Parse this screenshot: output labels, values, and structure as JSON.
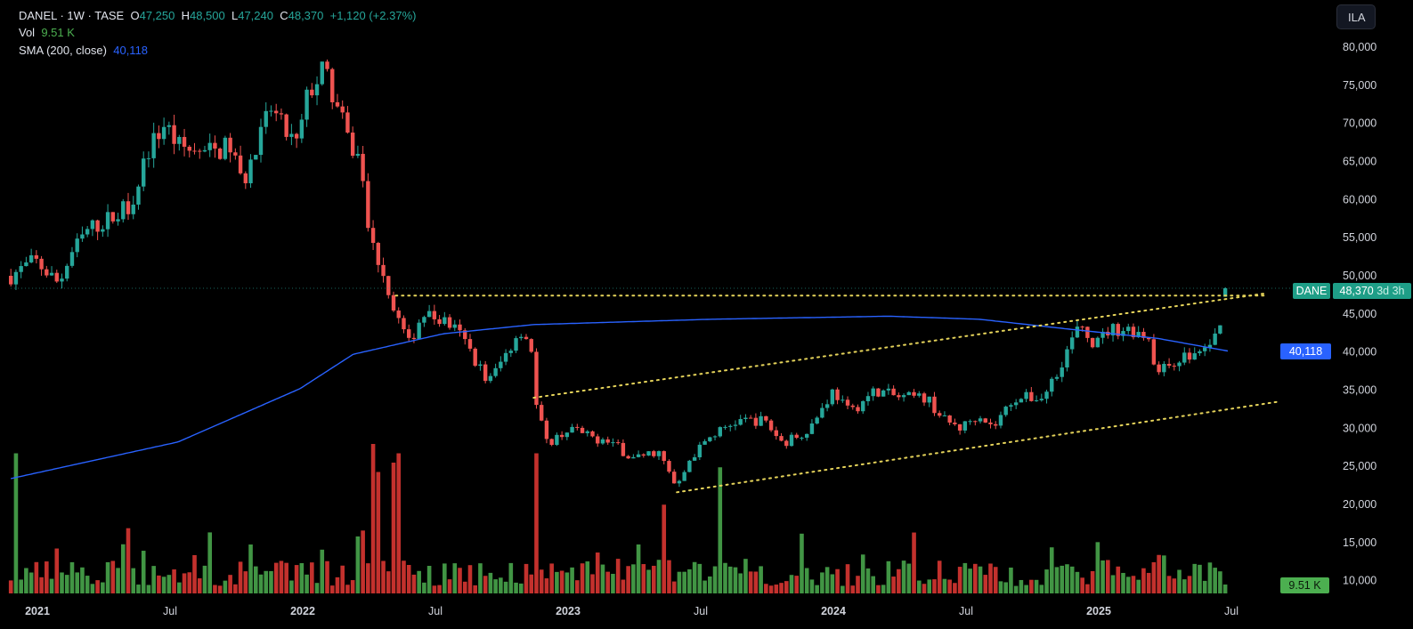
{
  "legend": {
    "symbol_line": "DANEL · 1W · TASE",
    "o_label": "O",
    "o": "47,250",
    "h_label": "H",
    "h": "48,500",
    "l_label": "L",
    "l": "47,240",
    "c_label": "C",
    "c": "48,370",
    "change": "+1,120 (+2.37%)",
    "vol_label": "Vol",
    "vol": "9.51 K",
    "sma_label": "SMA (200, close)",
    "sma": "40,118"
  },
  "currency_button": "ILA",
  "tags": {
    "symbol": "DANE",
    "price": "48,370",
    "countdown": "3d 3h",
    "sma": "40,118",
    "volume": "9.51 K"
  },
  "colors": {
    "up": "#26a69a",
    "down": "#ef5350",
    "vol_up": "#4caf50",
    "vol_down": "#e53935",
    "sma": "#2962ff",
    "trend": "#e5d35a"
  },
  "chart_data": {
    "type": "candlestick",
    "title": "DANEL · 1W · TASE",
    "y_ticks": [
      "80,000",
      "75,000",
      "70,000",
      "65,000",
      "60,000",
      "55,000",
      "50,000",
      "45,000",
      "40,000",
      "35,000",
      "30,000",
      "25,000",
      "20,000",
      "15,000",
      "10,000"
    ],
    "y_tick_values": [
      80000,
      75000,
      70000,
      65000,
      60000,
      55000,
      50000,
      45000,
      40000,
      35000,
      30000,
      25000,
      20000,
      15000,
      10000
    ],
    "x_ticks": [
      "2021",
      "Jul",
      "2022",
      "Jul",
      "2023",
      "Jul",
      "2024",
      "Jul",
      "2025",
      "Jul"
    ],
    "x_tick_values": [
      2021,
      2021.5,
      2022,
      2022.5,
      2023,
      2023.5,
      2024,
      2024.5,
      2025,
      2025.5
    ],
    "close_path": [
      [
        2020.9,
        50000
      ],
      [
        2020.99,
        52000
      ],
      [
        2021.08,
        49000
      ],
      [
        2021.13,
        53000
      ],
      [
        2021.19,
        56000
      ],
      [
        2021.3,
        58000
      ],
      [
        2021.36,
        60000
      ],
      [
        2021.41,
        66000
      ],
      [
        2021.48,
        70000
      ],
      [
        2021.53,
        67000
      ],
      [
        2021.63,
        66000
      ],
      [
        2021.73,
        67000
      ],
      [
        2021.77,
        62000
      ],
      [
        2021.83,
        67000
      ],
      [
        2021.88,
        72000
      ],
      [
        2021.93,
        69000
      ],
      [
        2021.98,
        67000
      ],
      [
        2022.02,
        74000
      ],
      [
        2022.08,
        77000
      ],
      [
        2022.13,
        72000
      ],
      [
        2022.18,
        67000
      ],
      [
        2022.22,
        65000
      ],
      [
        2022.25,
        55000
      ],
      [
        2022.3,
        51000
      ],
      [
        2022.34,
        46000
      ],
      [
        2022.4,
        41000
      ],
      [
        2022.45,
        45000
      ],
      [
        2022.54,
        44000
      ],
      [
        2022.6,
        42000
      ],
      [
        2022.7,
        36000
      ],
      [
        2022.77,
        40000
      ],
      [
        2022.82,
        43000
      ],
      [
        2022.86,
        41000
      ],
      [
        2022.88,
        33000
      ],
      [
        2022.92,
        28000
      ],
      [
        2023.01,
        30000
      ],
      [
        2023.07,
        29000
      ],
      [
        2023.17,
        28000
      ],
      [
        2023.24,
        26000
      ],
      [
        2023.34,
        27000
      ],
      [
        2023.41,
        22000
      ],
      [
        2023.46,
        26000
      ],
      [
        2023.54,
        29000
      ],
      [
        2023.64,
        31000
      ],
      [
        2023.74,
        31000
      ],
      [
        2023.81,
        28000
      ],
      [
        2023.91,
        30000
      ],
      [
        2024.0,
        35000
      ],
      [
        2024.06,
        32000
      ],
      [
        2024.16,
        35000
      ],
      [
        2024.25,
        34000
      ],
      [
        2024.35,
        34000
      ],
      [
        2024.42,
        31000
      ],
      [
        2024.48,
        30000
      ],
      [
        2024.55,
        32000
      ],
      [
        2024.6,
        30000
      ],
      [
        2024.68,
        34000
      ],
      [
        2024.79,
        34000
      ],
      [
        2024.85,
        38000
      ],
      [
        2024.92,
        43000
      ],
      [
        2024.99,
        41000
      ],
      [
        2025.04,
        43000
      ],
      [
        2025.12,
        43000
      ],
      [
        2025.19,
        42000
      ],
      [
        2025.22,
        37000
      ],
      [
        2025.29,
        39000
      ],
      [
        2025.39,
        40000
      ],
      [
        2025.44,
        42000
      ],
      [
        2025.47,
        44000
      ],
      [
        2025.49,
        48370
      ]
    ],
    "last_candle": {
      "open": 47250,
      "high": 48500,
      "low": 47240,
      "close": 48370,
      "volume_k": 9.51
    },
    "sma_200": [
      [
        2020.9,
        23400
      ],
      [
        2021.53,
        28200
      ],
      [
        2021.99,
        35200
      ],
      [
        2022.19,
        39700
      ],
      [
        2022.53,
        42400
      ],
      [
        2022.87,
        43600
      ],
      [
        2023.54,
        44300
      ],
      [
        2024.21,
        44700
      ],
      [
        2024.55,
        44300
      ],
      [
        2024.89,
        43000
      ],
      [
        2025.22,
        41800
      ],
      [
        2025.49,
        40118
      ]
    ],
    "trendlines": [
      {
        "name": "resistance-horizontal",
        "from": [
          2022.35,
          47400
        ],
        "to": [
          2025.63,
          47400
        ]
      },
      {
        "name": "upper-channel",
        "from": [
          2022.87,
          34000
        ],
        "to": [
          2025.63,
          47700
        ]
      },
      {
        "name": "lower-channel",
        "from": [
          2023.41,
          21600
        ],
        "to": [
          2025.68,
          33500
        ]
      }
    ],
    "last_price_line": 48370,
    "volume_spikes": [
      [
        2020.92,
        150
      ],
      [
        2022.26,
        160
      ],
      [
        2022.29,
        130
      ],
      [
        2022.35,
        140
      ],
      [
        2022.37,
        150
      ],
      [
        2022.88,
        150
      ],
      [
        2023.37,
        95
      ],
      [
        2023.57,
        135
      ]
    ]
  }
}
